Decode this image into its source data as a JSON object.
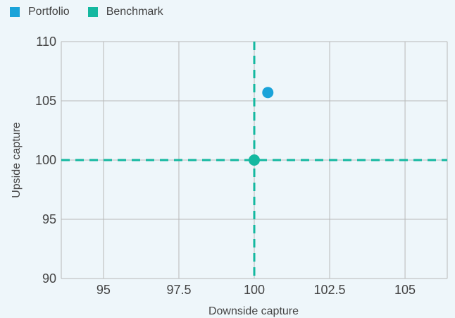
{
  "colors": {
    "background": "#eef6fa",
    "grid": "#b8b8b8",
    "axis_text": "#444444",
    "portfolio": "#1aa3d9",
    "benchmark": "#14b8a0"
  },
  "legend": {
    "items": [
      {
        "label": "Portfolio",
        "color": "#1aa3d9"
      },
      {
        "label": "Benchmark",
        "color": "#14b8a0"
      }
    ]
  },
  "chart_data": {
    "type": "scatter",
    "title": "",
    "xlabel": "Downside capture",
    "ylabel": "Upside capture",
    "xlim": [
      93.6,
      106.4
    ],
    "ylim": [
      90,
      110
    ],
    "xticks": [
      95,
      97.5,
      100,
      102.5,
      105
    ],
    "xtick_labels": [
      "95",
      "97.5",
      "100",
      "102.5",
      "105"
    ],
    "yticks": [
      90,
      95,
      100,
      105,
      110
    ],
    "ytick_labels": [
      "90",
      "95",
      "100",
      "105",
      "110"
    ],
    "grid": true,
    "legend_position": "top-left",
    "reference_lines": {
      "x": 100,
      "y": 100,
      "style": "dashed",
      "color": "#14b8a0"
    },
    "series": [
      {
        "name": "Portfolio",
        "color": "#1aa3d9",
        "points": [
          {
            "x": 100.45,
            "y": 105.7
          }
        ]
      },
      {
        "name": "Benchmark",
        "color": "#14b8a0",
        "points": [
          {
            "x": 100,
            "y": 100
          }
        ]
      }
    ]
  }
}
